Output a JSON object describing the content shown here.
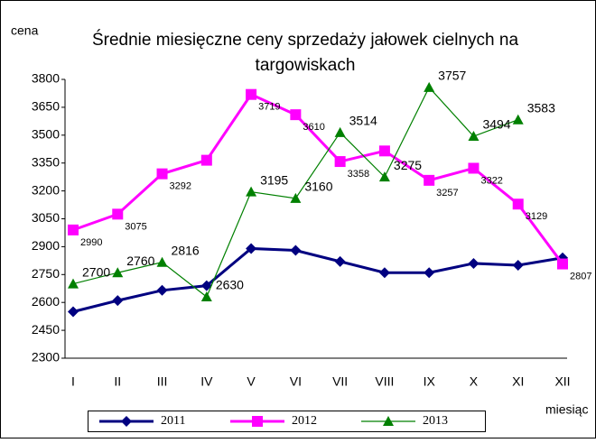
{
  "chart_data": {
    "type": "line",
    "title": "Średnie miesięczne ceny sprzedaży jałowek cielnych na targowiskach",
    "y_label": "cena",
    "x_label": "miesiąc",
    "categories": [
      "I",
      "II",
      "III",
      "IV",
      "V",
      "VI",
      "VII",
      "VIII",
      "IX",
      "X",
      "XI",
      "XII"
    ],
    "ylim": [
      2300,
      3800
    ],
    "yticks": [
      2300,
      2450,
      2600,
      2750,
      2900,
      3050,
      3200,
      3350,
      3500,
      3650,
      3800
    ],
    "grid": false,
    "legend": "bottom",
    "series": [
      {
        "name": "2011",
        "color": "#000080",
        "marker": "diamond",
        "values": [
          2550,
          2610,
          2665,
          2690,
          2890,
          2880,
          2820,
          2760,
          2760,
          2810,
          2800,
          2840
        ]
      },
      {
        "name": "2012",
        "color": "#ff00ff",
        "marker": "square",
        "values": [
          2990,
          3075,
          3292,
          3365,
          3719,
          3610,
          3358,
          3415,
          3257,
          3322,
          3129,
          2807
        ],
        "value_labels": [
          "2990",
          "3075",
          "3292",
          null,
          "3719",
          "3610",
          "3358",
          null,
          "3257",
          "3322",
          "3129",
          "2807"
        ]
      },
      {
        "name": "2013",
        "color": "#008000",
        "marker": "triangle",
        "values": [
          2700,
          2760,
          2816,
          2630,
          3195,
          3160,
          3514,
          3275,
          3757,
          3494,
          3583,
          null
        ],
        "value_labels": [
          "2700",
          "2760",
          "2816",
          "2630",
          "3195",
          "3160",
          "3514",
          "3275",
          "3757",
          "3494",
          "3583",
          null
        ]
      }
    ]
  }
}
